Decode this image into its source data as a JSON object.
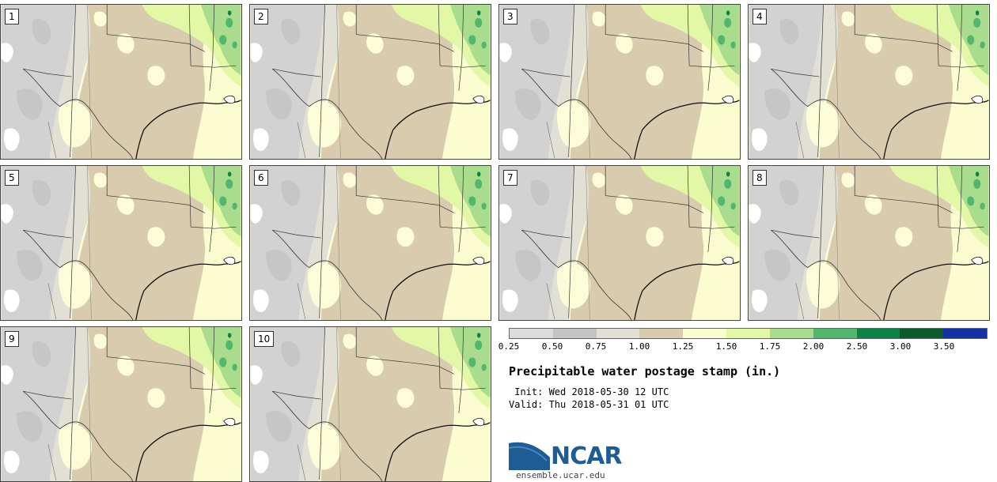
{
  "panels": [
    {
      "label": "1"
    },
    {
      "label": "2"
    },
    {
      "label": "3"
    },
    {
      "label": "4"
    },
    {
      "label": "5"
    },
    {
      "label": "6"
    },
    {
      "label": "7"
    },
    {
      "label": "8"
    },
    {
      "label": "9"
    },
    {
      "label": "10"
    }
  ],
  "colorbar": {
    "colors": [
      "#dcdcdc",
      "#c3c3c3",
      "#e2e0d4",
      "#d9ccae",
      "#fbfcd0",
      "#e3f8a6",
      "#a9dc8c",
      "#52b66e",
      "#0b8345",
      "#0d5a2c",
      "#1131a5"
    ],
    "ticks": [
      "0.25",
      "0.50",
      "0.75",
      "1.00",
      "1.25",
      "1.50",
      "1.75",
      "2.00",
      "2.50",
      "3.00",
      "3.50"
    ]
  },
  "title": "Precipitable water postage stamp (in.)",
  "init": " Init: Wed 2018-05-30 12 UTC",
  "valid": "Valid: Thu 2018-05-31 01 UTC",
  "logo": {
    "text": "NCAR",
    "url": "ensemble.ucar.edu",
    "color": "#1e5c96"
  }
}
